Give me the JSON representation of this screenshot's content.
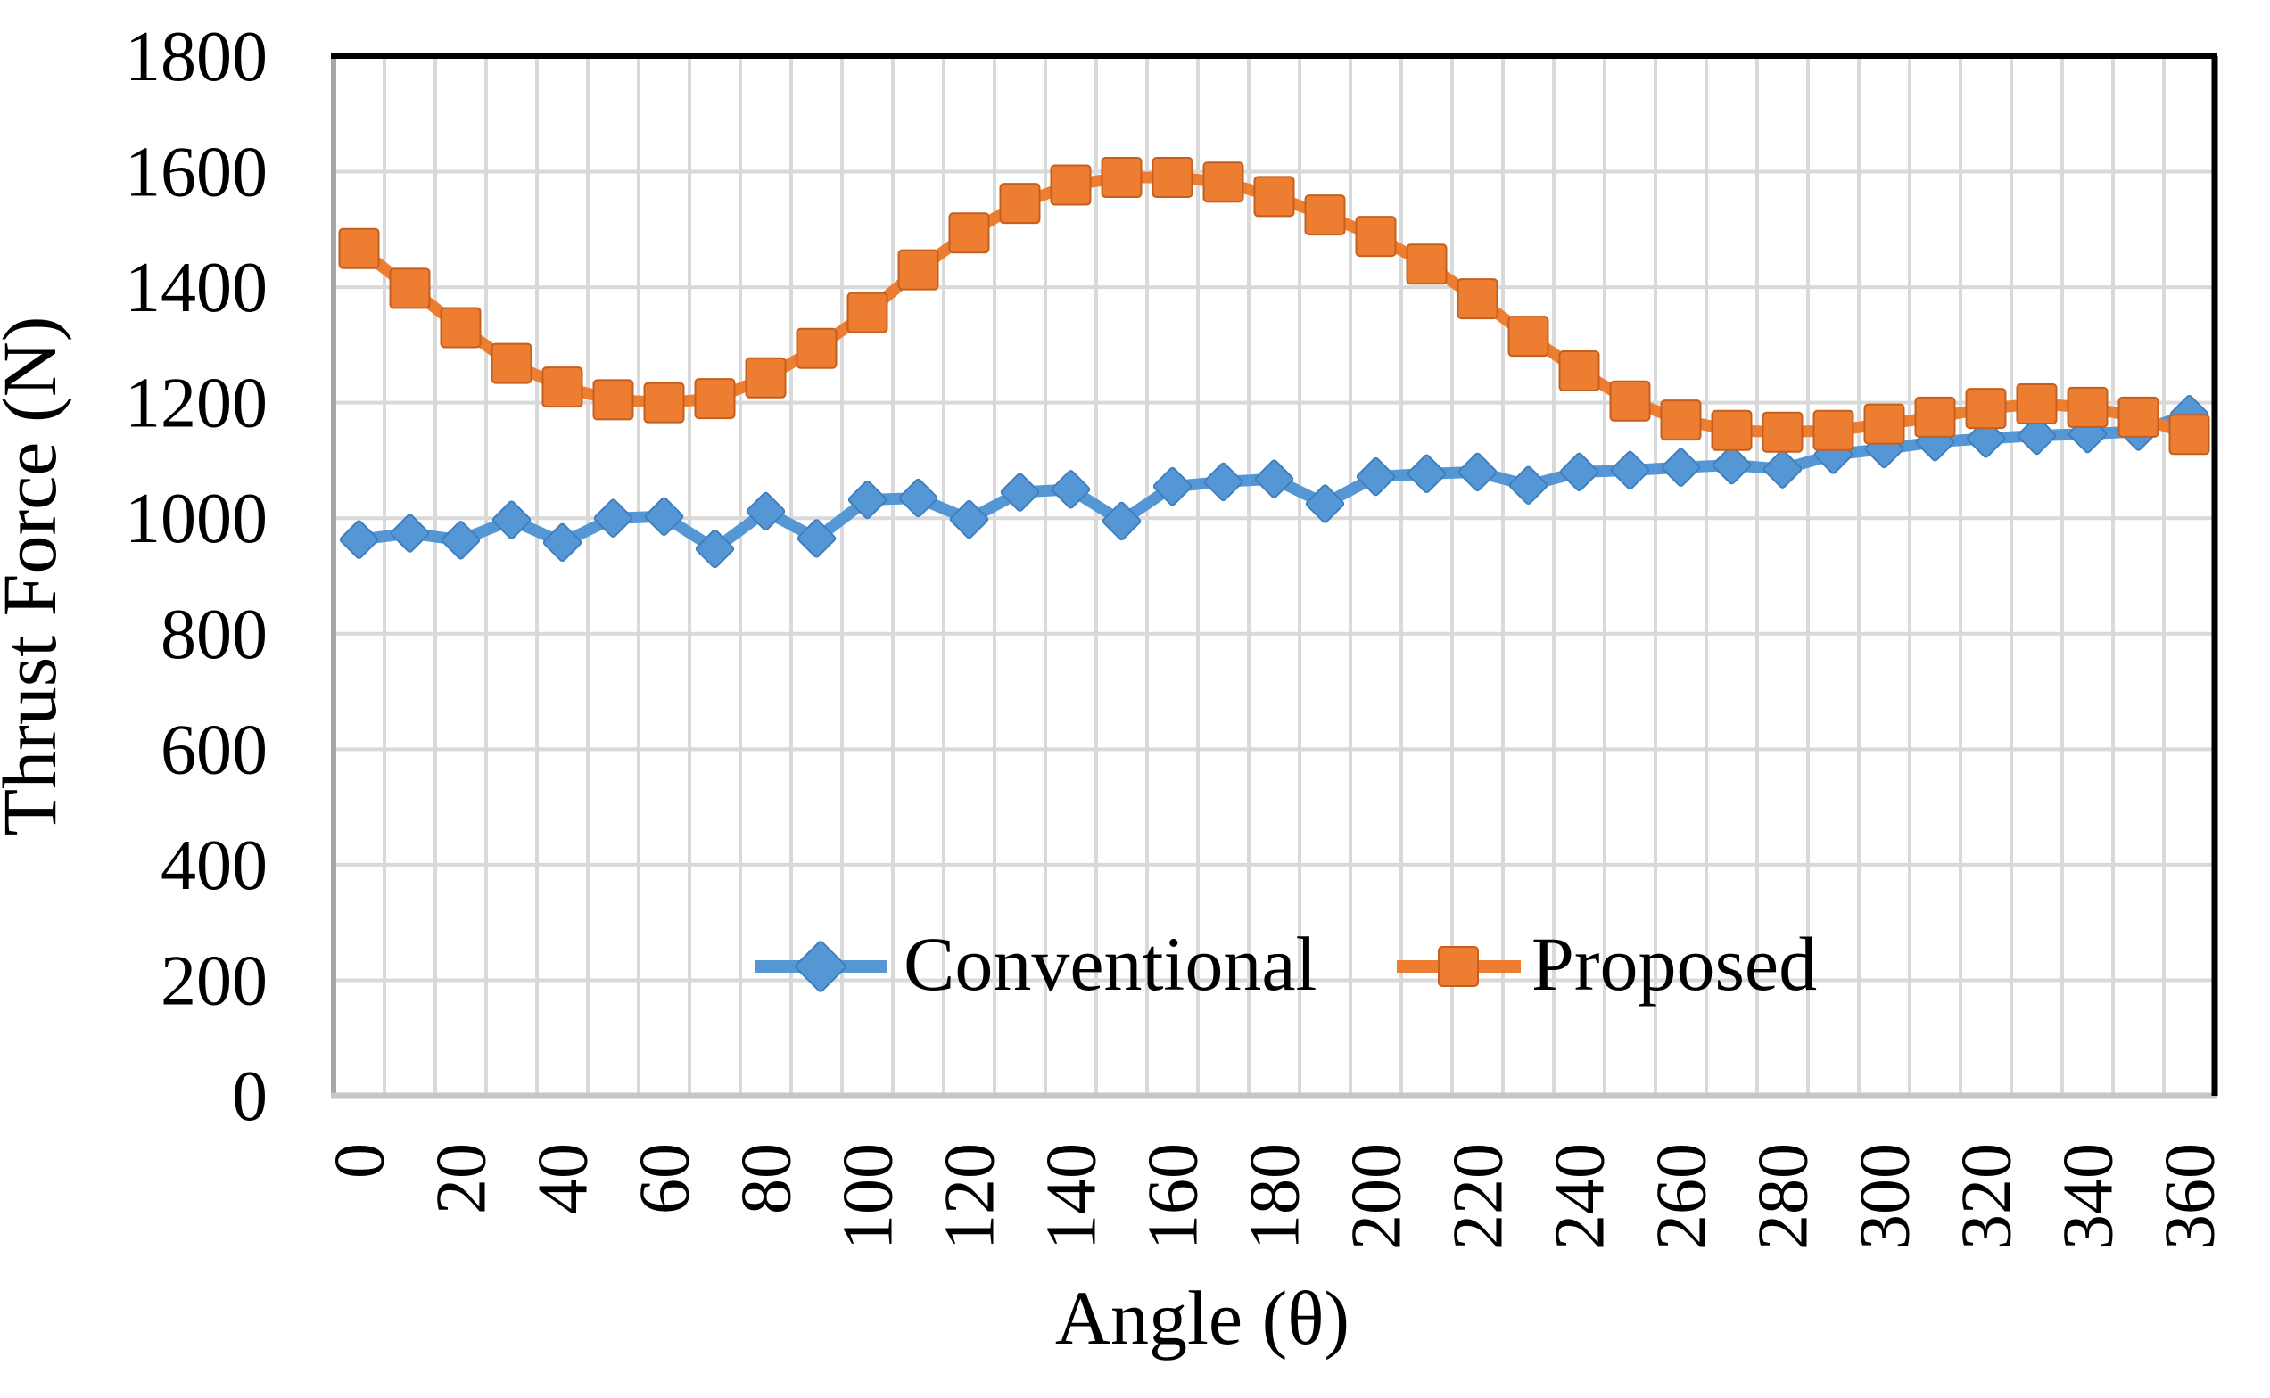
{
  "chart_data": {
    "type": "line",
    "title": "",
    "xlabel": "Angle (θ)",
    "ylabel": "Thrust Force (N)",
    "x": [
      0,
      10,
      20,
      30,
      40,
      50,
      60,
      70,
      80,
      90,
      100,
      110,
      120,
      130,
      140,
      150,
      160,
      170,
      180,
      190,
      200,
      210,
      220,
      230,
      240,
      250,
      260,
      270,
      280,
      290,
      300,
      310,
      320,
      330,
      340,
      350,
      360
    ],
    "x_tick_labels": [
      "0",
      "20",
      "40",
      "60",
      "80",
      "100",
      "120",
      "140",
      "160",
      "180",
      "200",
      "220",
      "240",
      "260",
      "280",
      "300",
      "320",
      "340",
      "360"
    ],
    "y_tick_labels": [
      "0",
      "200",
      "400",
      "600",
      "800",
      "1000",
      "1200",
      "1400",
      "1600",
      "1800"
    ],
    "ylim": [
      0,
      1800
    ],
    "y_tick_step": 200,
    "grid": true,
    "legend_position": "inside-bottom-center",
    "series": [
      {
        "name": "Conventional",
        "marker": "diamond",
        "color": "#5596D5",
        "marker_edge_color": "#3F7FBE",
        "values": [
          963,
          974,
          962,
          997,
          958,
          1000,
          1003,
          947,
          1012,
          965,
          1032,
          1035,
          998,
          1045,
          1050,
          995,
          1055,
          1063,
          1068,
          1025,
          1072,
          1077,
          1080,
          1057,
          1080,
          1083,
          1088,
          1092,
          1085,
          1110,
          1120,
          1132,
          1138,
          1143,
          1146,
          1150,
          1180
        ]
      },
      {
        "name": "Proposed",
        "marker": "square",
        "color": "#ED7D31",
        "marker_edge_color": "#C55F1E",
        "values": [
          1467,
          1398,
          1330,
          1268,
          1227,
          1205,
          1200,
          1207,
          1243,
          1294,
          1356,
          1430,
          1494,
          1545,
          1577,
          1590,
          1590,
          1582,
          1557,
          1525,
          1488,
          1440,
          1380,
          1315,
          1255,
          1203,
          1170,
          1152,
          1149,
          1152,
          1163,
          1175,
          1190,
          1198,
          1192,
          1175,
          1145
        ]
      }
    ],
    "colors": {
      "background": "#ffffff",
      "gridline": "#D9D9D9",
      "axis_left": "#A6A6A6",
      "axis_bottom": "#C6C6C6",
      "border_top": "#000000",
      "border_right": "#000000",
      "text": "#000000"
    }
  }
}
